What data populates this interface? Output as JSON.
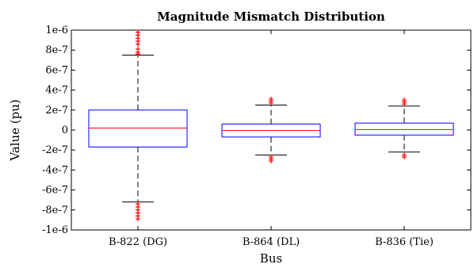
{
  "chart_data": {
    "type": "box",
    "title": "Magnitude Mismatch Distribution",
    "xlabel": "Bus",
    "ylabel": "Value (pu)",
    "ylim": [
      -1e-06,
      1e-06
    ],
    "yticks": [
      -1e-06,
      -8e-07,
      -6e-07,
      -4e-07,
      -2e-07,
      0,
      2e-07,
      4e-07,
      6e-07,
      8e-07,
      1e-06
    ],
    "ytick_labels": [
      "-1e-6",
      "-8e-7",
      "-6e-7",
      "-4e-7",
      "-2e-7",
      "0",
      "2e-7",
      "4e-7",
      "6e-7",
      "8e-7",
      "1e-6"
    ],
    "categories": [
      "B-822 (DG)",
      "B-864 (DL)",
      "B-836 (Tie)"
    ],
    "boxes": [
      {
        "category": "B-822 (DG)",
        "whisker_low": -7.2e-07,
        "q1": -1.7e-07,
        "median": 2e-08,
        "q3": 2e-07,
        "whisker_high": 7.5e-07,
        "outliers": [
          7.6e-07,
          7.8e-07,
          8.1e-07,
          8.6e-07,
          8.9e-07,
          9.2e-07,
          9.5e-07,
          9.8e-07,
          -7.4e-07,
          -7.7e-07,
          -8e-07,
          -8.3e-07,
          -8.6e-07,
          -8.9e-07
        ]
      },
      {
        "category": "B-864 (DL)",
        "whisker_low": -2.5e-07,
        "q1": -7e-08,
        "median": -5e-09,
        "q3": 6e-08,
        "whisker_high": 2.5e-07,
        "outliers": [
          2.7e-07,
          2.9e-07,
          3.1e-07,
          -2.7e-07,
          -2.9e-07,
          -3.1e-07
        ]
      },
      {
        "category": "B-836 (Tie)",
        "whisker_low": -2.2e-07,
        "q1": -5e-08,
        "median": 5e-09,
        "q3": 7e-08,
        "whisker_high": 2.4e-07,
        "outliers": [
          2.6e-07,
          2.8e-07,
          3e-07,
          -2.5e-07,
          -2.7e-07
        ]
      }
    ],
    "grid": false,
    "colors": {
      "box": "#0000ff",
      "median": "#ff0000",
      "outlier": "#ff0000",
      "whisker": "#000000",
      "axes": "#000000"
    }
  }
}
